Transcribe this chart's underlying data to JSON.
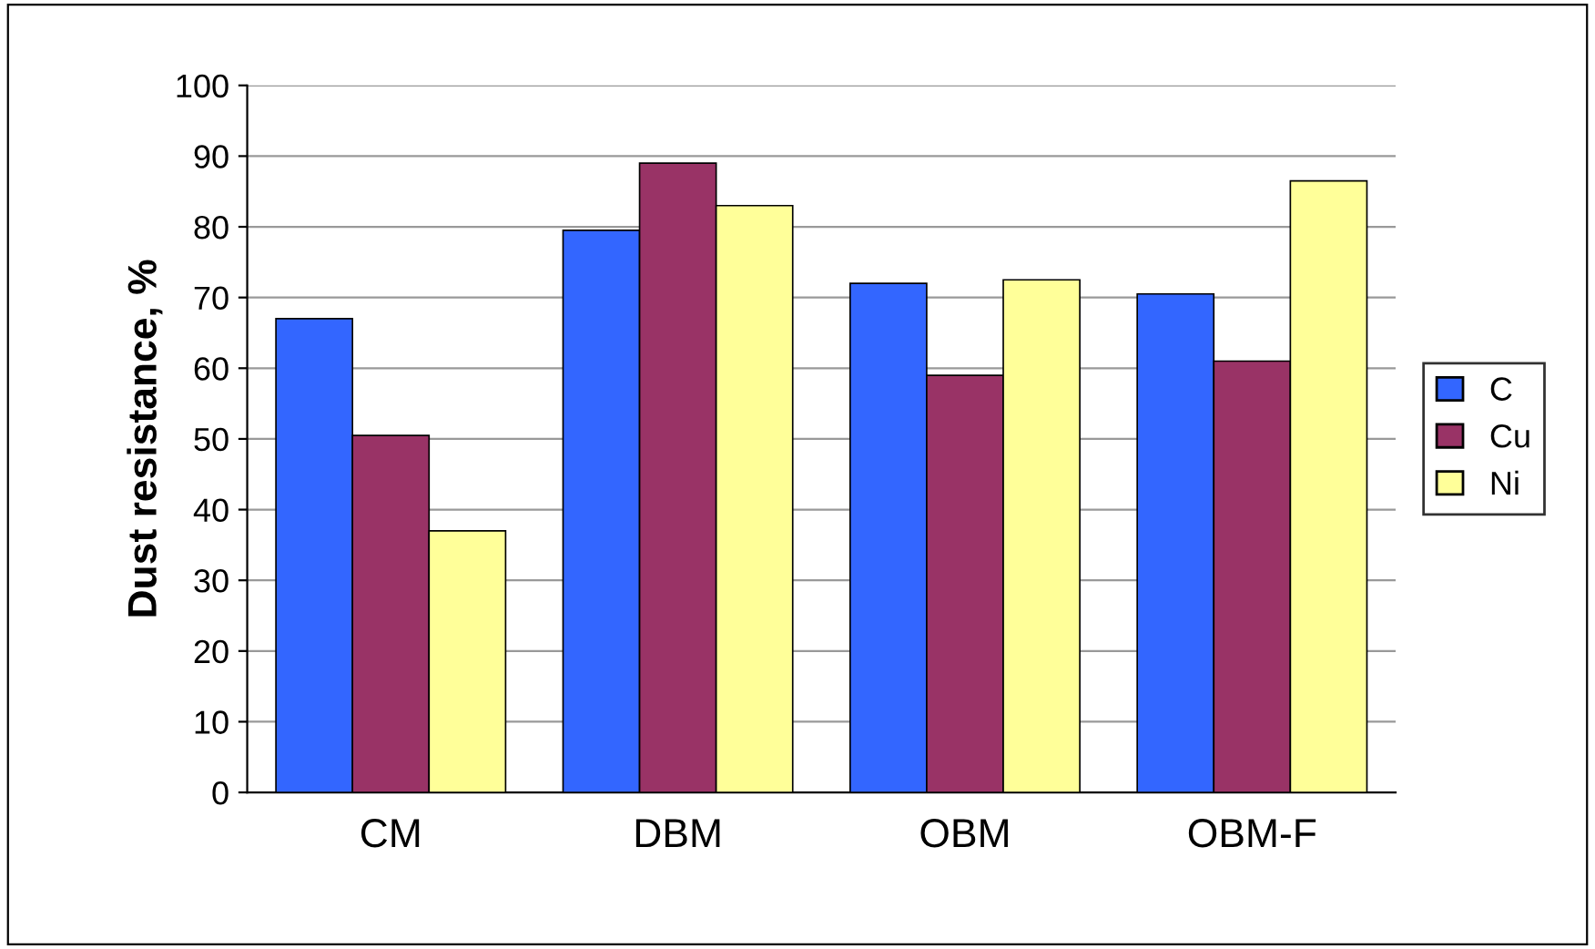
{
  "chart_data": {
    "type": "bar",
    "ylabel": "Dust resistance, %",
    "categories": [
      "CM",
      "DBM",
      "OBM",
      "OBM-F"
    ],
    "series": [
      {
        "name": "C",
        "color": "#3366ff",
        "values": [
          67,
          79.5,
          72,
          70.5
        ]
      },
      {
        "name": "Cu",
        "color": "#993366",
        "values": [
          50.5,
          89,
          59,
          61
        ]
      },
      {
        "name": "Ni",
        "color": "#ffff99",
        "values": [
          37,
          83,
          72.5,
          86.5
        ]
      }
    ],
    "ylim": [
      0,
      100
    ],
    "yticks": [
      0,
      10,
      20,
      30,
      40,
      50,
      60,
      70,
      80,
      90,
      100
    ],
    "grid": "y",
    "legend": "right"
  }
}
